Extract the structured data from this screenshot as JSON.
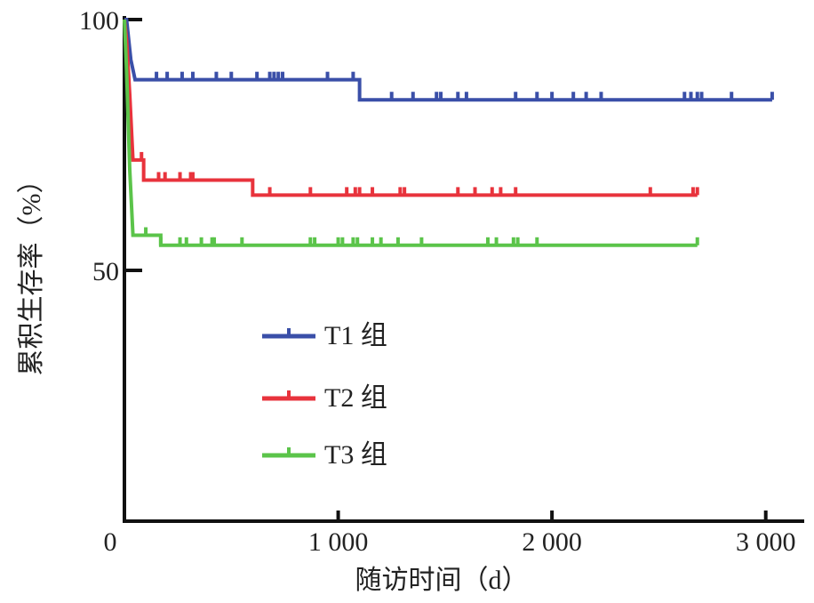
{
  "chart_data": {
    "type": "line",
    "x_label": "随访时间（d）",
    "y_label": "累积生存率（%）",
    "xlim": [
      0,
      3180
    ],
    "ylim": [
      0,
      100
    ],
    "xticks": [
      0,
      {
        "value": 1000,
        "label": "1 000"
      },
      {
        "value": 2000,
        "label": "2 000"
      },
      {
        "value": 3000,
        "label": "3 000"
      }
    ],
    "yticks": [
      50,
      100
    ],
    "series": [
      {
        "name": "T1 组",
        "color": "#3a4fa8",
        "x": [
          0,
          10,
          20,
          30,
          50,
          1100,
          1100,
          3030
        ],
        "values": [
          100,
          100,
          96,
          92,
          88,
          88,
          84,
          84
        ],
        "censor_x": [
          150,
          200,
          270,
          320,
          430,
          500,
          620,
          680,
          700,
          720,
          740,
          950,
          1070,
          1250,
          1350,
          1460,
          1480,
          1560,
          1600,
          1830,
          1930,
          2000,
          2100,
          2160,
          2230,
          2620,
          2650,
          2680,
          2700,
          2840,
          3030
        ]
      },
      {
        "name": "T2 组",
        "color": "#e8333c",
        "x": [
          0,
          10,
          25,
          40,
          90,
          90,
          600,
          600,
          2680
        ],
        "values": [
          100,
          96,
          85,
          72,
          72,
          68,
          68,
          65,
          65
        ],
        "censor_x": [
          80,
          160,
          190,
          260,
          310,
          320,
          680,
          870,
          1040,
          1080,
          1100,
          1160,
          1290,
          1310,
          1560,
          1640,
          1720,
          1760,
          1830,
          2460,
          2660,
          2680
        ]
      },
      {
        "name": "T3 组",
        "color": "#5bc44a",
        "x": [
          0,
          10,
          25,
          40,
          170,
          170,
          2680
        ],
        "values": [
          100,
          90,
          70,
          57,
          57,
          55,
          55
        ],
        "censor_x": [
          100,
          170,
          260,
          290,
          360,
          410,
          420,
          550,
          870,
          890,
          1000,
          1020,
          1070,
          1090,
          1160,
          1200,
          1280,
          1390,
          1700,
          1740,
          1820,
          1840,
          1930,
          2680
        ]
      }
    ]
  }
}
